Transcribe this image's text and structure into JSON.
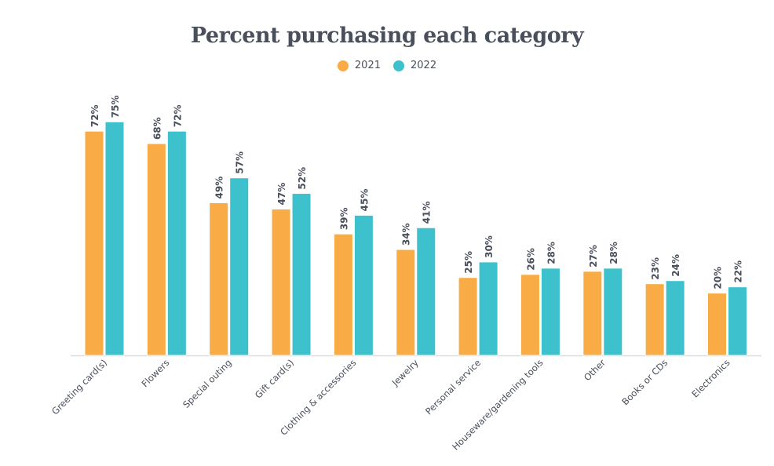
{
  "chart_data": {
    "type": "bar",
    "title": "Percent purchasing each category",
    "categories": [
      "Greeting card(s)",
      "Flowers",
      "Special outing",
      "Gift card(s)",
      "Clothing & accessories",
      "Jewelry",
      "Personal service",
      "Houseware/gardening tools",
      "Other",
      "Books or CDs",
      "Electronics"
    ],
    "series": [
      {
        "name": "2021",
        "color": "#F9AC45",
        "values": [
          72,
          68,
          49,
          47,
          39,
          34,
          25,
          26,
          27,
          23,
          20
        ]
      },
      {
        "name": "2022",
        "color": "#3CC1CD",
        "values": [
          75,
          72,
          57,
          52,
          45,
          41,
          30,
          28,
          28,
          24,
          22
        ]
      }
    ],
    "value_suffix": "%",
    "ylim": [
      0,
      100
    ],
    "grid": false,
    "legend_position": "top-center",
    "xlabel": "",
    "ylabel": ""
  }
}
